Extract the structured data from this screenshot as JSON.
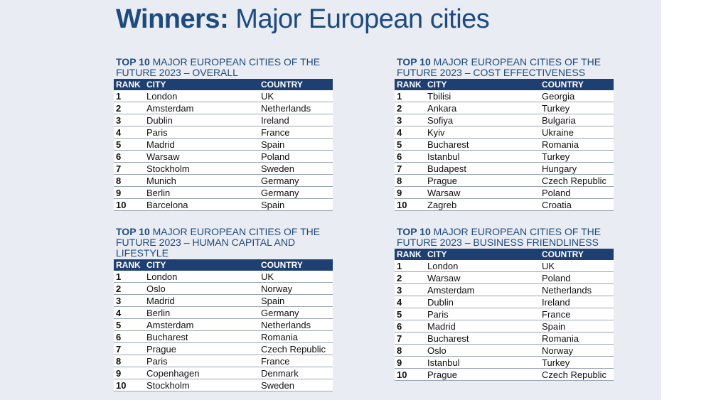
{
  "title": {
    "bold": "Winners:",
    "light": "Major European cities"
  },
  "headers": {
    "rank": "RANK",
    "city": "CITY",
    "country": "COUNTRY"
  },
  "tables": [
    {
      "title_prefix": "TOP 10",
      "title_rest": "MAJOR EUROPEAN CITIES OF THE FUTURE 2023 – OVERALL",
      "rows": [
        {
          "rank": "1",
          "city": "London",
          "country": "UK"
        },
        {
          "rank": "2",
          "city": "Amsterdam",
          "country": "Netherlands"
        },
        {
          "rank": "3",
          "city": "Dublin",
          "country": "Ireland"
        },
        {
          "rank": "4",
          "city": "Paris",
          "country": "France"
        },
        {
          "rank": "5",
          "city": "Madrid",
          "country": "Spain"
        },
        {
          "rank": "6",
          "city": "Warsaw",
          "country": "Poland"
        },
        {
          "rank": "7",
          "city": "Stockholm",
          "country": "Sweden"
        },
        {
          "rank": "8",
          "city": "Munich",
          "country": "Germany"
        },
        {
          "rank": "9",
          "city": "Berlin",
          "country": "Germany"
        },
        {
          "rank": "10",
          "city": "Barcelona",
          "country": "Spain"
        }
      ]
    },
    {
      "title_prefix": "TOP 10",
      "title_rest": "MAJOR EUROPEAN CITIES OF THE FUTURE 2023 – COST EFFECTIVENESS",
      "rows": [
        {
          "rank": "1",
          "city": "Tbilisi",
          "country": "Georgia"
        },
        {
          "rank": "2",
          "city": "Ankara",
          "country": "Turkey"
        },
        {
          "rank": "3",
          "city": "Sofiya",
          "country": "Bulgaria"
        },
        {
          "rank": "4",
          "city": "Kyiv",
          "country": "Ukraine"
        },
        {
          "rank": "5",
          "city": "Bucharest",
          "country": "Romania"
        },
        {
          "rank": "6",
          "city": "Istanbul",
          "country": "Turkey"
        },
        {
          "rank": "7",
          "city": "Budapest",
          "country": "Hungary"
        },
        {
          "rank": "8",
          "city": "Prague",
          "country": "Czech Republic"
        },
        {
          "rank": "9",
          "city": "Warsaw",
          "country": "Poland"
        },
        {
          "rank": "10",
          "city": "Zagreb",
          "country": "Croatia"
        }
      ]
    },
    {
      "title_prefix": "TOP 10",
      "title_rest": "MAJOR EUROPEAN CITIES OF THE FUTURE 2023 – HUMAN CAPITAL AND LIFESTYLE",
      "rows": [
        {
          "rank": "1",
          "city": "London",
          "country": "UK"
        },
        {
          "rank": "2",
          "city": "Oslo",
          "country": "Norway"
        },
        {
          "rank": "3",
          "city": "Madrid",
          "country": "Spain"
        },
        {
          "rank": "4",
          "city": "Berlin",
          "country": "Germany"
        },
        {
          "rank": "5",
          "city": "Amsterdam",
          "country": "Netherlands"
        },
        {
          "rank": "6",
          "city": "Bucharest",
          "country": "Romania"
        },
        {
          "rank": "7",
          "city": "Prague",
          "country": "Czech Republic"
        },
        {
          "rank": "8",
          "city": "Paris",
          "country": "France"
        },
        {
          "rank": "9",
          "city": "Copenhagen",
          "country": "Denmark"
        },
        {
          "rank": "10",
          "city": "Stockholm",
          "country": "Sweden"
        }
      ]
    },
    {
      "title_prefix": "TOP 10",
      "title_rest": "MAJOR EUROPEAN CITIES OF THE FUTURE 2023 – BUSINESS FRIENDLINESS",
      "rows": [
        {
          "rank": "1",
          "city": "London",
          "country": "UK"
        },
        {
          "rank": "2",
          "city": "Warsaw",
          "country": "Poland"
        },
        {
          "rank": "3",
          "city": "Amsterdam",
          "country": "Netherlands"
        },
        {
          "rank": "4",
          "city": "Dublin",
          "country": "Ireland"
        },
        {
          "rank": "5",
          "city": "Paris",
          "country": "France"
        },
        {
          "rank": "6",
          "city": "Madrid",
          "country": "Spain"
        },
        {
          "rank": "7",
          "city": "Bucharest",
          "country": "Romania"
        },
        {
          "rank": "8",
          "city": "Oslo",
          "country": "Norway"
        },
        {
          "rank": "9",
          "city": "Istanbul",
          "country": "Turkey"
        },
        {
          "rank": "10",
          "city": "Prague",
          "country": "Czech Republic"
        }
      ]
    }
  ],
  "colors": {
    "brand": "#1e4b7e",
    "header_bg": "#1e3f72",
    "page_bg": "#e9ecf2"
  }
}
